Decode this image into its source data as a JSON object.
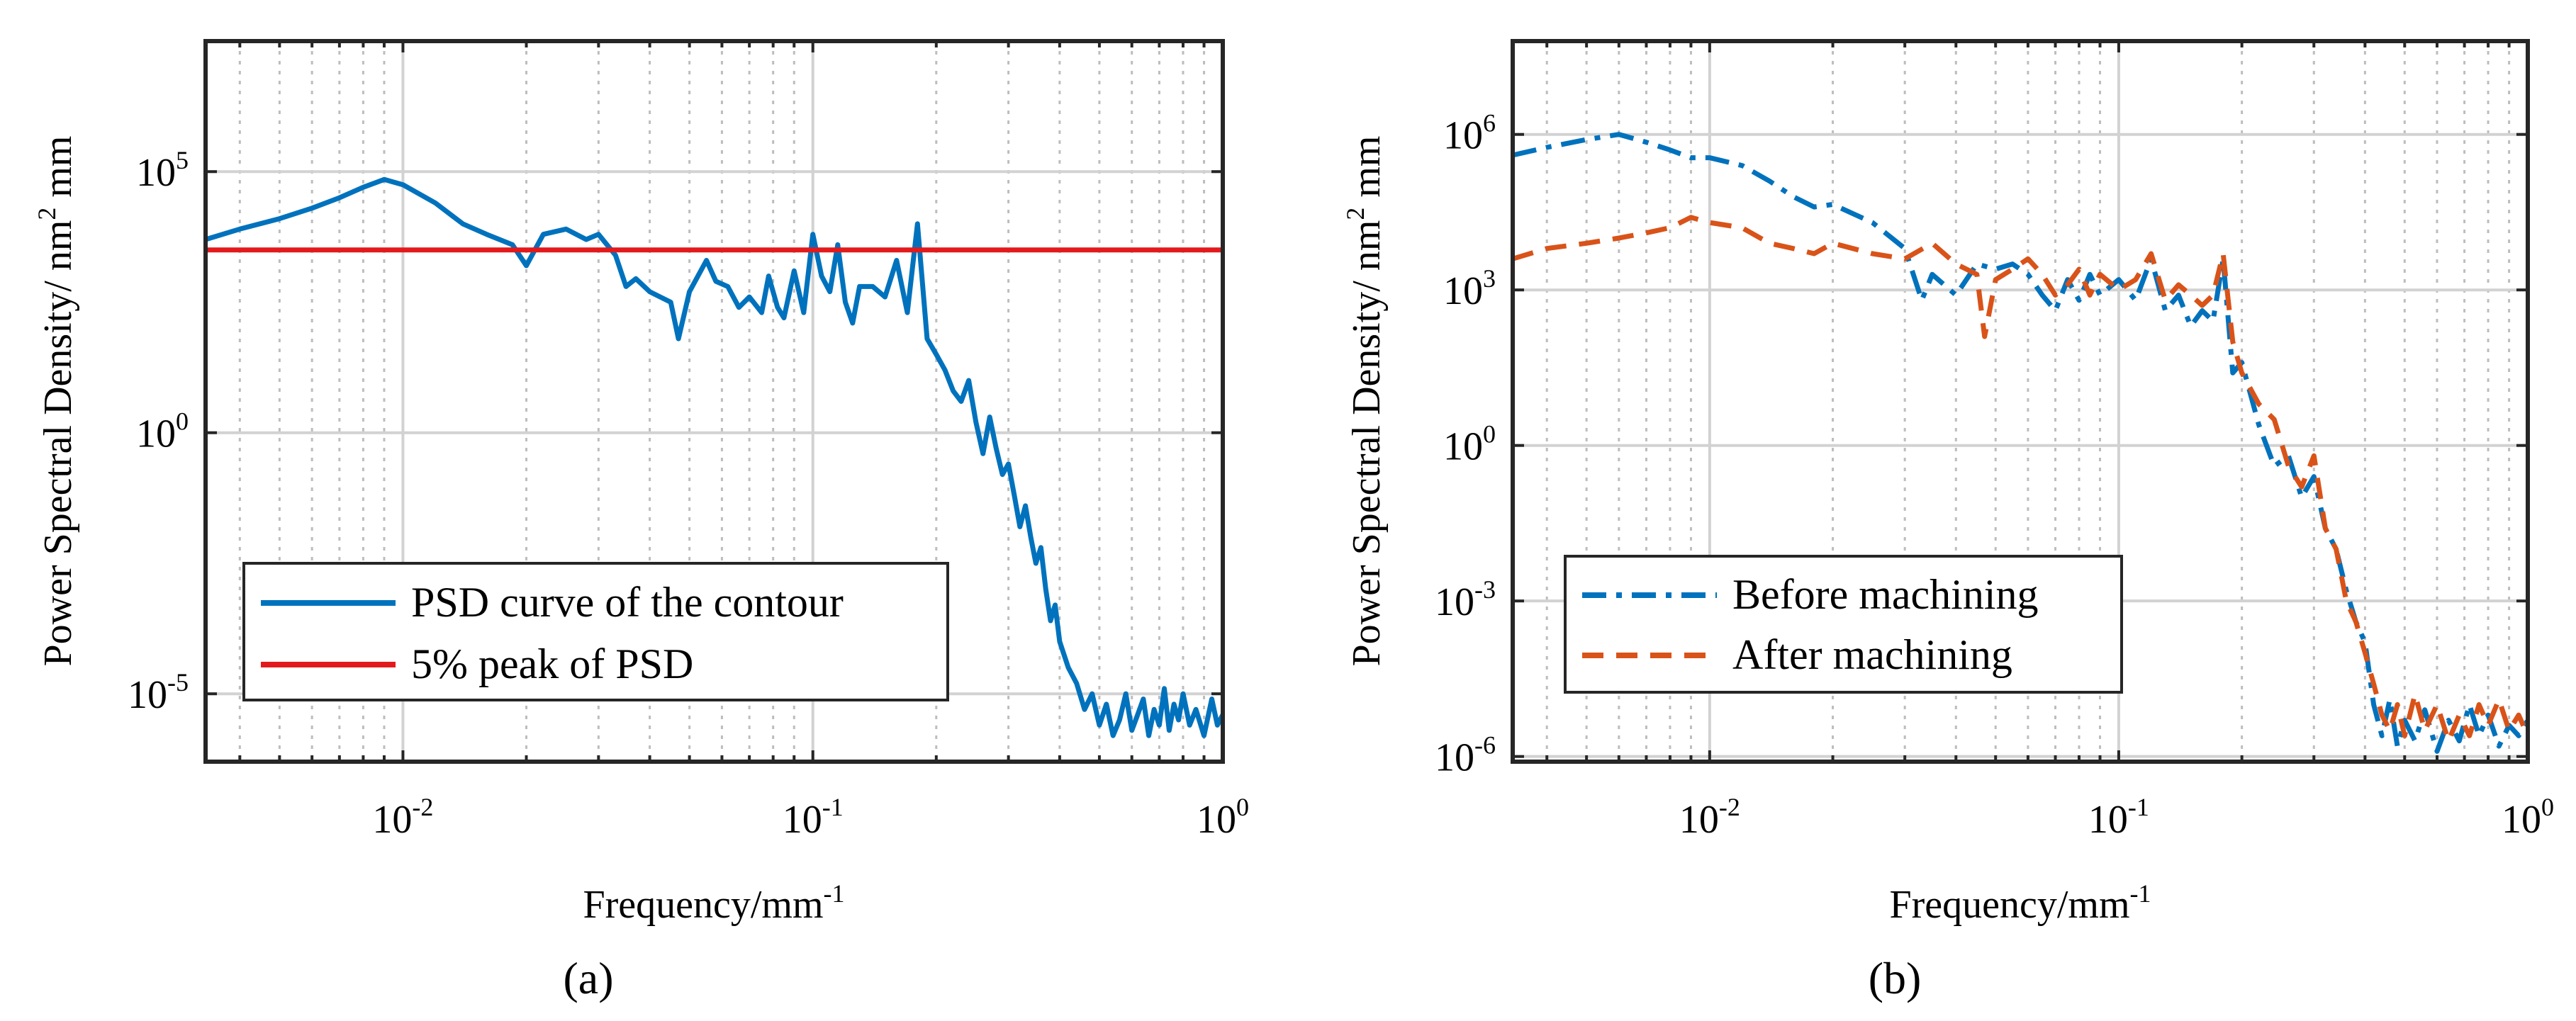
{
  "panel_labels": [
    "(a)",
    "(b)"
  ],
  "chart_data": [
    {
      "type": "line",
      "panel": "(a)",
      "xlabel": "Frequency/mm",
      "xlabel_sup": "-1",
      "ylabel": "Power Spectral Density/ nm",
      "ylabel_sup": "2",
      "ylabel_suffix": " mm",
      "xscale": "log",
      "yscale": "log",
      "xlim": [
        0.0033,
        1
      ],
      "ylim_log10": [
        -6.3,
        7.5
      ],
      "xticks": [
        {
          "base": "10",
          "exp": "-2",
          "value": 0.01
        },
        {
          "base": "10",
          "exp": "-1",
          "value": 0.1
        },
        {
          "base": "10",
          "exp": "0",
          "value": 1
        }
      ],
      "yticks": [
        {
          "base": "10",
          "exp": "5",
          "log10": 5
        },
        {
          "base": "10",
          "exp": "0",
          "log10": 0
        },
        {
          "base": "10",
          "exp": "-5",
          "log10": -5
        }
      ],
      "grid": true,
      "legend_position": "bottom-left",
      "series": [
        {
          "name": "PSD curve of the contour",
          "color": "#0072BD",
          "style": "solid",
          "x": [
            0.0033,
            0.004,
            0.005,
            0.006,
            0.007,
            0.008,
            0.009,
            0.01,
            0.012,
            0.014,
            0.016,
            0.0185,
            0.02,
            0.022,
            0.025,
            0.028,
            0.03,
            0.033,
            0.035,
            0.037,
            0.04,
            0.045,
            0.047,
            0.05,
            0.055,
            0.058,
            0.062,
            0.066,
            0.07,
            0.075,
            0.078,
            0.082,
            0.085,
            0.09,
            0.095,
            0.1,
            0.105,
            0.11,
            0.115,
            0.12,
            0.125,
            0.13,
            0.14,
            0.15,
            0.16,
            0.17,
            0.18,
            0.19,
            0.2,
            0.21,
            0.22,
            0.23,
            0.24,
            0.25,
            0.26,
            0.27,
            0.28,
            0.29,
            0.3,
            0.31,
            0.32,
            0.33,
            0.34,
            0.35,
            0.36,
            0.37,
            0.38,
            0.39,
            0.4,
            0.42,
            0.44,
            0.46,
            0.48,
            0.5,
            0.52,
            0.54,
            0.56,
            0.58,
            0.6,
            0.62,
            0.64,
            0.66,
            0.68,
            0.7,
            0.72,
            0.74,
            0.76,
            0.78,
            0.8,
            0.83,
            0.86,
            0.9,
            0.94,
            0.97,
            1.0
          ],
          "y_log10": [
            3.7,
            3.9,
            4.1,
            4.3,
            4.5,
            4.7,
            4.85,
            4.75,
            4.4,
            4.0,
            3.8,
            3.6,
            3.2,
            3.8,
            3.9,
            3.7,
            3.8,
            3.4,
            2.8,
            2.95,
            2.7,
            2.5,
            1.8,
            2.7,
            3.3,
            2.9,
            2.8,
            2.4,
            2.6,
            2.3,
            3.0,
            2.4,
            2.2,
            3.1,
            2.3,
            3.8,
            3.0,
            2.7,
            3.6,
            2.5,
            2.1,
            2.8,
            2.8,
            2.6,
            3.3,
            2.3,
            4.0,
            1.8,
            1.5,
            1.2,
            0.8,
            0.6,
            1.0,
            0.2,
            -0.4,
            0.3,
            -0.3,
            -0.8,
            -0.6,
            -1.2,
            -1.8,
            -1.4,
            -2.0,
            -2.5,
            -2.2,
            -3.0,
            -3.6,
            -3.3,
            -4.0,
            -4.5,
            -4.8,
            -5.3,
            -5.0,
            -5.6,
            -5.2,
            -5.8,
            -5.5,
            -5.0,
            -5.7,
            -5.4,
            -5.1,
            -5.8,
            -5.3,
            -5.6,
            -4.9,
            -5.7,
            -5.2,
            -5.5,
            -5.0,
            -5.6,
            -5.3,
            -5.8,
            -5.1,
            -5.6,
            -5.4
          ]
        },
        {
          "name": "5% peak of PSD",
          "color": "#E31A1C",
          "style": "solid",
          "x": [
            0.0033,
            1
          ],
          "y_log10": [
            3.5,
            3.5
          ]
        }
      ]
    },
    {
      "type": "line",
      "panel": "(b)",
      "xlabel": "Frequency/mm",
      "xlabel_sup": "-1",
      "ylabel": "Power Spectral Density/ nm",
      "ylabel_sup": "2",
      "ylabel_suffix": " mm",
      "xscale": "log",
      "yscale": "log",
      "xlim": [
        0.0033,
        1
      ],
      "ylim_log10": [
        -6.1,
        7.8
      ],
      "xticks": [
        {
          "base": "10",
          "exp": "-2",
          "value": 0.01
        },
        {
          "base": "10",
          "exp": "-1",
          "value": 0.1
        },
        {
          "base": "10",
          "exp": "0",
          "value": 1
        }
      ],
      "yticks": [
        {
          "base": "10",
          "exp": "6",
          "log10": 6
        },
        {
          "base": "10",
          "exp": "3",
          "log10": 3
        },
        {
          "base": "10",
          "exp": "0",
          "log10": 0
        },
        {
          "base": "10",
          "exp": "-3",
          "log10": -3
        },
        {
          "base": "10",
          "exp": "-6",
          "log10": -6
        }
      ],
      "grid": true,
      "legend_position": "bottom-left",
      "series": [
        {
          "name": "Before machining",
          "color": "#0072BD",
          "style": "dashdot",
          "x": [
            0.0033,
            0.004,
            0.005,
            0.006,
            0.007,
            0.008,
            0.009,
            0.01,
            0.012,
            0.014,
            0.016,
            0.018,
            0.02,
            0.025,
            0.03,
            0.033,
            0.035,
            0.04,
            0.045,
            0.05,
            0.055,
            0.06,
            0.065,
            0.07,
            0.075,
            0.08,
            0.085,
            0.09,
            0.1,
            0.11,
            0.12,
            0.13,
            0.14,
            0.15,
            0.16,
            0.17,
            0.18,
            0.19,
            0.2,
            0.22,
            0.24,
            0.26,
            0.28,
            0.3,
            0.32,
            0.34,
            0.36,
            0.38,
            0.4,
            0.42,
            0.44,
            0.46,
            0.48,
            0.5,
            0.53,
            0.56,
            0.6,
            0.64,
            0.68,
            0.72,
            0.76,
            0.8,
            0.85,
            0.9,
            0.95,
            1.0
          ],
          "y_log10": [
            5.6,
            5.75,
            5.9,
            6.0,
            5.85,
            5.7,
            5.55,
            5.55,
            5.4,
            5.1,
            4.8,
            4.6,
            4.65,
            4.3,
            3.8,
            2.8,
            3.3,
            2.9,
            3.5,
            3.4,
            3.5,
            3.3,
            2.9,
            2.6,
            3.2,
            2.8,
            3.3,
            2.9,
            3.2,
            2.8,
            3.6,
            2.6,
            2.9,
            2.3,
            2.6,
            2.4,
            3.6,
            1.4,
            1.6,
            0.4,
            -0.4,
            -0.2,
            -1.0,
            -0.6,
            -1.6,
            -2.0,
            -2.8,
            -3.4,
            -3.8,
            -5.0,
            -5.6,
            -4.9,
            -5.8,
            -5.3,
            -5.7,
            -5.1,
            -5.9,
            -5.3,
            -5.7,
            -5.0,
            -5.6,
            -5.2,
            -5.8,
            -5.4,
            -5.6,
            -5.3
          ]
        },
        {
          "name": "After machining",
          "color": "#D95319",
          "style": "dashed",
          "x": [
            0.0033,
            0.004,
            0.005,
            0.006,
            0.007,
            0.008,
            0.009,
            0.01,
            0.012,
            0.014,
            0.016,
            0.018,
            0.02,
            0.025,
            0.03,
            0.035,
            0.04,
            0.045,
            0.047,
            0.05,
            0.055,
            0.06,
            0.065,
            0.07,
            0.075,
            0.08,
            0.085,
            0.09,
            0.1,
            0.11,
            0.12,
            0.13,
            0.14,
            0.15,
            0.16,
            0.17,
            0.18,
            0.19,
            0.2,
            0.22,
            0.24,
            0.26,
            0.28,
            0.3,
            0.32,
            0.34,
            0.36,
            0.38,
            0.4,
            0.42,
            0.44,
            0.46,
            0.48,
            0.5,
            0.53,
            0.56,
            0.6,
            0.64,
            0.68,
            0.72,
            0.76,
            0.8,
            0.85,
            0.9,
            0.95,
            1.0
          ],
          "y_log10": [
            3.6,
            3.8,
            3.9,
            4.0,
            4.1,
            4.2,
            4.4,
            4.3,
            4.2,
            3.9,
            3.8,
            3.7,
            3.9,
            3.7,
            3.6,
            3.9,
            3.5,
            3.3,
            2.1,
            3.2,
            3.4,
            3.6,
            3.3,
            2.9,
            3.1,
            3.4,
            2.9,
            3.3,
            3.0,
            3.2,
            3.7,
            2.8,
            3.1,
            2.9,
            2.7,
            2.9,
            3.7,
            2.0,
            1.4,
            0.8,
            0.5,
            -0.4,
            -0.8,
            -0.2,
            -1.6,
            -2.0,
            -3.0,
            -3.4,
            -4.0,
            -4.6,
            -5.2,
            -5.5,
            -5.0,
            -5.6,
            -4.8,
            -5.5,
            -5.0,
            -5.7,
            -5.2,
            -5.6,
            -5.0,
            -5.4,
            -4.9,
            -5.5,
            -5.2,
            -5.6
          ]
        }
      ]
    }
  ]
}
